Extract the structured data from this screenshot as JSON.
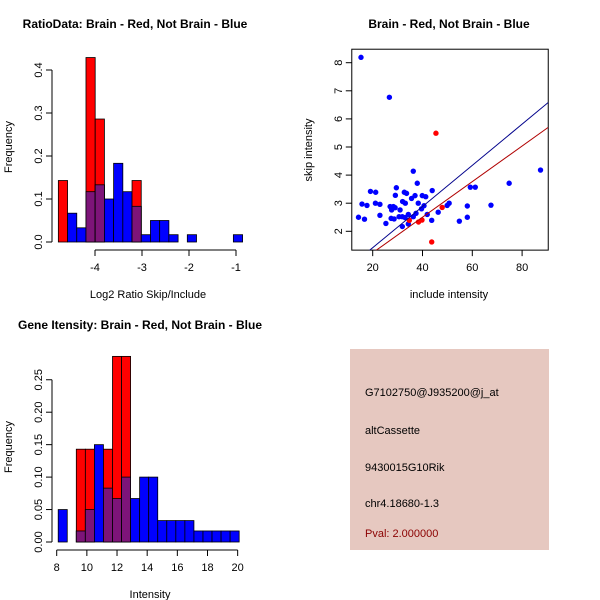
{
  "colors": {
    "red": "#ff0000",
    "blue": "#0000ff",
    "overlap": "#7d1479",
    "box": "#e6c8c0",
    "pval": "#8b0000",
    "red_line": "#b00000",
    "blue_line": "#00008b"
  },
  "chart_data": [
    {
      "type": "bar",
      "subtype": "overlaid-histogram",
      "title": "RatioData: Brain - Red, Not Brain - Blue",
      "xlabel": "Log2 Ratio Skip/Include",
      "ylabel": "Frequency",
      "bin_start": -4.78,
      "bin_width": 0.196,
      "xticks": [
        -4,
        -3,
        -2,
        -1
      ],
      "yticks": [
        0.0,
        0.1,
        0.2,
        0.3,
        0.4
      ],
      "ytick_labels": [
        "0.0",
        "0.1",
        "0.2",
        "0.3",
        "0.4"
      ],
      "series": [
        {
          "name": "Brain",
          "color": "red",
          "values": [
            0.143,
            0,
            0,
            0.429,
            0.286,
            0,
            0,
            0,
            0.143,
            0,
            0,
            0,
            0,
            0,
            0,
            0,
            0,
            0,
            0,
            0
          ]
        },
        {
          "name": "Not Brain",
          "color": "blue",
          "values": [
            0,
            0.067,
            0.033,
            0.117,
            0.133,
            0.1,
            0.183,
            0.117,
            0.083,
            0.017,
            0.05,
            0.05,
            0.017,
            0,
            0.017,
            0,
            0,
            0,
            0,
            0.017
          ]
        }
      ]
    },
    {
      "type": "scatter",
      "title": "Brain - Red, Not Brain - Blue",
      "xlabel": "include intensity",
      "ylabel": "skip intensity",
      "xlim": [
        11.6,
        90.5
      ],
      "ylim": [
        1.33,
        8.48
      ],
      "xticks": [
        20,
        40,
        60,
        80
      ],
      "yticks": [
        2,
        3,
        4,
        5,
        6,
        7,
        8
      ],
      "series": [
        {
          "name": "Not Brain",
          "color": "blue",
          "points": [
            [
              15.3,
              8.19
            ],
            [
              26.7,
              6.77
            ],
            [
              87.4,
              4.18
            ],
            [
              74.8,
              3.71
            ],
            [
              67.5,
              2.93
            ],
            [
              59.2,
              3.57
            ],
            [
              61.2,
              3.57
            ],
            [
              58.0,
              2.9
            ],
            [
              58.0,
              2.5
            ],
            [
              54.8,
              2.36
            ],
            [
              50.7,
              3.0
            ],
            [
              49.9,
              2.92
            ],
            [
              46.3,
              2.68
            ],
            [
              43.7,
              2.39
            ],
            [
              43.9,
              3.45
            ],
            [
              36.3,
              4.14
            ],
            [
              37.9,
              3.71
            ],
            [
              37.0,
              3.27
            ],
            [
              39.9,
              3.27
            ],
            [
              41.3,
              3.23
            ],
            [
              38.3,
              3.0
            ],
            [
              40.6,
              2.91
            ],
            [
              39.6,
              2.8
            ],
            [
              41.9,
              2.6
            ],
            [
              37.4,
              2.64
            ],
            [
              36.3,
              2.52
            ],
            [
              35.6,
              3.17
            ],
            [
              33.6,
              3.35
            ],
            [
              32.7,
              3.39
            ],
            [
              33.1,
              3.0
            ],
            [
              32.0,
              3.06
            ],
            [
              29.5,
              3.55
            ],
            [
              29.1,
              3.28
            ],
            [
              31.0,
              2.76
            ],
            [
              30.6,
              2.52
            ],
            [
              31.9,
              2.52
            ],
            [
              33.0,
              2.49
            ],
            [
              34.3,
              2.6
            ],
            [
              31.9,
              2.17
            ],
            [
              34.3,
              2.26
            ],
            [
              29.0,
              2.84
            ],
            [
              28.3,
              2.88
            ],
            [
              27.0,
              2.88
            ],
            [
              27.6,
              2.76
            ],
            [
              28.6,
              2.44
            ],
            [
              27.4,
              2.46
            ],
            [
              25.3,
              2.28
            ],
            [
              22.9,
              2.57
            ],
            [
              22.9,
              2.96
            ],
            [
              21.1,
              3.0
            ],
            [
              19.1,
              3.42
            ],
            [
              21.2,
              3.39
            ],
            [
              17.7,
              2.92
            ],
            [
              15.7,
              2.97
            ],
            [
              16.7,
              2.43
            ],
            [
              14.3,
              2.5
            ]
          ]
        },
        {
          "name": "Brain",
          "color": "red",
          "points": [
            [
              45.4,
              5.49
            ],
            [
              47.9,
              2.85
            ],
            [
              39.8,
              2.4
            ],
            [
              38.4,
              2.33
            ],
            [
              34.7,
              2.39
            ],
            [
              43.7,
              1.62
            ]
          ]
        }
      ],
      "lines": [
        {
          "name": "Not Brain fit",
          "color": "blue_line",
          "slope": 0.0733,
          "intercept": -0.05
        },
        {
          "name": "Brain fit",
          "color": "red_line",
          "slope": 0.0633,
          "intercept": -0.03
        }
      ]
    },
    {
      "type": "bar",
      "subtype": "overlaid-histogram",
      "title": "Gene Itensity: Brain - Red, Not Brain - Blue",
      "xlabel": "Intensity",
      "ylabel": "Frequency",
      "bin_start": 8.1,
      "bin_width": 0.6,
      "xticks": [
        8,
        10,
        12,
        14,
        16,
        18,
        20
      ],
      "yticks": [
        0,
        0.05,
        0.1,
        0.15,
        0.2,
        0.25
      ],
      "ytick_labels": [
        "0.00",
        "0.05",
        "0.10",
        "0.15",
        "0.20",
        "0.25"
      ],
      "series": [
        {
          "name": "Brain",
          "color": "red",
          "values": [
            0,
            0,
            0.143,
            0.143,
            0,
            0.143,
            0.286,
            0.286,
            0,
            0,
            0,
            0,
            0,
            0,
            0,
            0,
            0,
            0,
            0,
            0
          ]
        },
        {
          "name": "Not Brain",
          "color": "blue",
          "values": [
            0.05,
            0,
            0.017,
            0.05,
            0.15,
            0.083,
            0.067,
            0.1,
            0.067,
            0.1,
            0.1,
            0.033,
            0.033,
            0.033,
            0.033,
            0.017,
            0.017,
            0.017,
            0.017,
            0.017
          ]
        }
      ]
    }
  ],
  "info": {
    "probe": "G7102750@J935200@j_at",
    "type": "altCassette",
    "gene": "9430015G10Rik",
    "location": "chr4.18680-1.3",
    "pval": "Pval: 2.000000"
  }
}
